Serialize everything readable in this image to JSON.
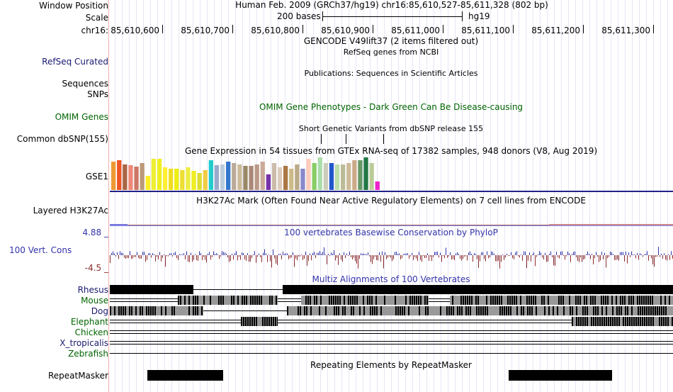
{
  "header": {
    "window_position_label": "Window Position",
    "window_position_text": "Human Feb. 2009 (GRCh37/hg19)   chr16:85,610,527-85,611,328 (802 bp)",
    "scale_label": "Scale",
    "scale_bar_text": "200 bases",
    "assembly": "hg19",
    "chrom_label": "chr16:",
    "ruler_ticks": [
      "85,610,600",
      "85,610,700",
      "85,610,800",
      "85,610,900",
      "85,611,000",
      "85,611,100",
      "85,611,200",
      "85,611,300"
    ]
  },
  "tracks": {
    "gencode_title": "GENCODE V49lift37 (2 items filtered out)",
    "refseq_label": "RefSeq Curated",
    "refseq_title": "RefSeq genes from NCBI",
    "publications_title": "Publications: Sequences in Scientific Articles",
    "sequences_label": "Sequences",
    "snps_label": "SNPs",
    "omim_label": "OMIM Genes",
    "omim_title": "OMIM Gene Phenotypes - Dark Green Can Be Disease-causing",
    "dbsnp_title": "Short Genetic Variants from dbSNP release 155",
    "dbsnp_label": "Common dbSNP(155)",
    "gtex_title": "Gene Expression in 54 tissues from GTEx RNA-seq of 17382 samples, 948 donors (V8, Aug 2019)",
    "gtex_label": "GSE1",
    "h3k27ac_label": "Layered H3K27Ac",
    "h3k27ac_title": "H3K27Ac Mark (Often Found Near Active Regulatory Elements) on 7 cell lines from ENCODE",
    "phylop_max": "4.88 _",
    "phylop_min": "-4.5 _",
    "phylop_label": "100 Vert. Cons",
    "phylop_title": "100 vertebrates Basewise Conservation by PhyloP",
    "multiz_title": "Multiz Alignments of 100 Vertebrates",
    "species": [
      "Rhesus",
      "Mouse",
      "Dog",
      "Elephant",
      "Chicken",
      "X_tropicalis",
      "Zebrafish"
    ],
    "repeatmasker_title": "Repeating Elements by RepeatMasker",
    "repeatmasker_label": "RepeatMasker"
  },
  "colors": {
    "navy": "#191970",
    "green": "#006400",
    "phylop_pos": "#3333aa",
    "phylop_neg": "#8b2a2a",
    "gtex_baseline": "#222288",
    "grid": "#e6e6f5",
    "gtex_bars": [
      "#ee9933",
      "#ee5522",
      "#aa6644",
      "#ee8877",
      "#cc7766",
      "#bb9977",
      "#ffee22",
      "#eeee33",
      "#eeee22",
      "#ffee33",
      "#eedd22",
      "#eeee11",
      "#eedd33",
      "#eeee44",
      "#eeee22",
      "#dddd33",
      "#eecc44",
      "#22cccc",
      "#99aacc",
      "#bbccdd",
      "#3377cc",
      "#bbaa99",
      "#ccbb99",
      "#998866",
      "#aa8877",
      "#bb9988",
      "#ccaa99",
      "#7733aa",
      "#ccbbaa",
      "#ddccbb",
      "#aa7744",
      "#ccbb88",
      "#bbaa88",
      "#8888cc",
      "#ffccbb",
      "#88cc66",
      "#aaddaa",
      "#ccccbb",
      "#2255cc",
      "#bbddaa",
      "#bbbb99",
      "#ccbb99",
      "#ccaa88",
      "#669966",
      "#227744",
      "#bbcc99",
      "#ee22cc"
    ]
  },
  "chart_data": {
    "type": "bar",
    "title": "Gene Expression in 54 tissues from GTEx RNA-seq of 17382 samples, 948 donors (V8, Aug 2019)",
    "values": [
      40,
      42,
      36,
      35,
      33,
      38,
      20,
      44,
      44,
      32,
      30,
      30,
      28,
      32,
      27,
      24,
      28,
      42,
      35,
      36,
      40,
      38,
      36,
      34,
      34,
      36,
      40,
      22,
      38,
      32,
      34,
      30,
      36,
      30,
      44,
      38,
      46,
      38,
      38,
      36,
      36,
      38,
      42,
      42,
      46,
      38,
      12
    ],
    "ylim": [
      0,
      48
    ]
  }
}
